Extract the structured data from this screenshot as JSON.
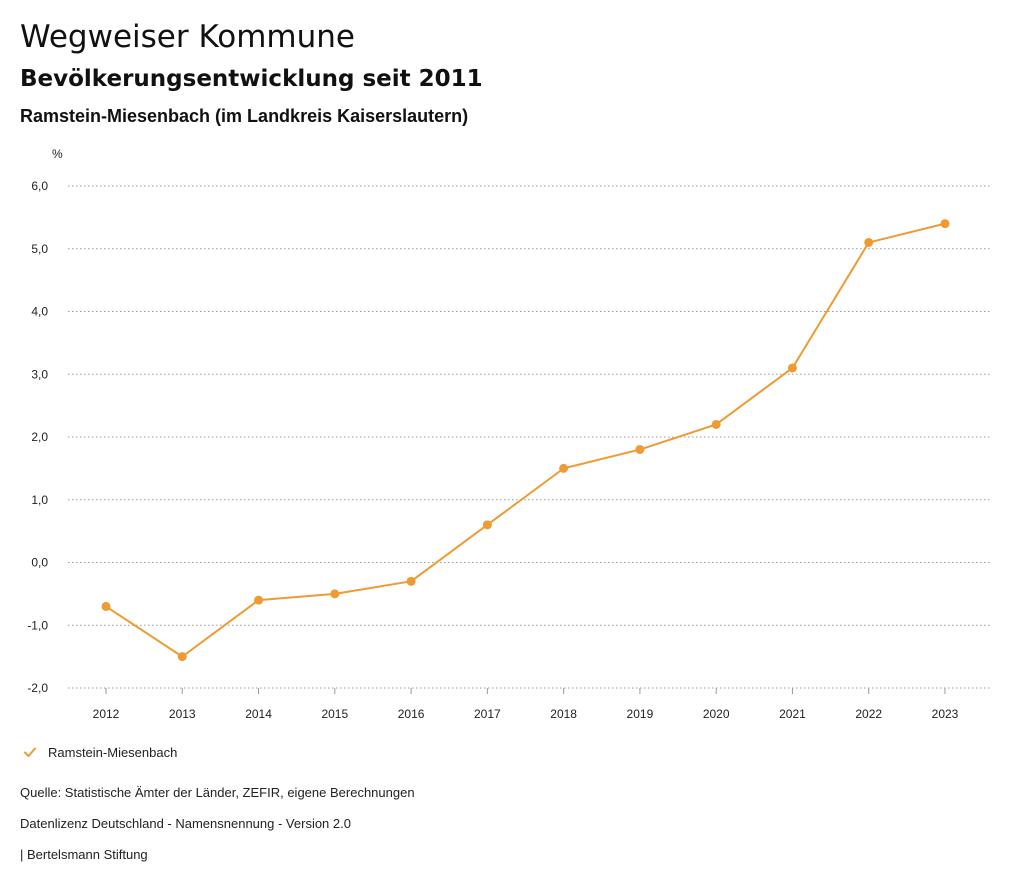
{
  "header": {
    "app_title": "Wegweiser Kommune",
    "subtitle": "Bevölkerungsentwicklung seit 2011",
    "region": "Ramstein-Miesenbach (im Landkreis Kaiserslautern)"
  },
  "chart_data": {
    "type": "line",
    "unit_label": "%",
    "categories": [
      "2012",
      "2013",
      "2014",
      "2015",
      "2016",
      "2017",
      "2018",
      "2019",
      "2020",
      "2021",
      "2022",
      "2023"
    ],
    "series": [
      {
        "name": "Ramstein-Miesenbach",
        "color": "#ee9b33",
        "values": [
          -0.7,
          -1.5,
          -0.6,
          -0.5,
          -0.3,
          0.6,
          1.5,
          1.8,
          2.2,
          3.1,
          5.1,
          5.4
        ]
      }
    ],
    "ylim": [
      -2,
      6
    ],
    "yticks": [
      6,
      5,
      4,
      3,
      2,
      1,
      0,
      -1,
      -2
    ],
    "ytick_labels": [
      "6,0",
      "5,0",
      "4,0",
      "3,0",
      "2,0",
      "1,0",
      "0,0",
      "-1,0",
      "-2,0"
    ],
    "grid": true,
    "legend_position": "bottom-left"
  },
  "legend": {
    "label": "Ramstein-Miesenbach",
    "icon": "checkmark-icon",
    "color": "#ee9b33"
  },
  "footer": {
    "source": "Quelle: Statistische Ämter der Länder, ZEFIR, eigene Berechnungen",
    "license": "Datenlizenz Deutschland - Namensnennung - Version 2.0",
    "credit": "| Bertelsmann Stiftung"
  }
}
